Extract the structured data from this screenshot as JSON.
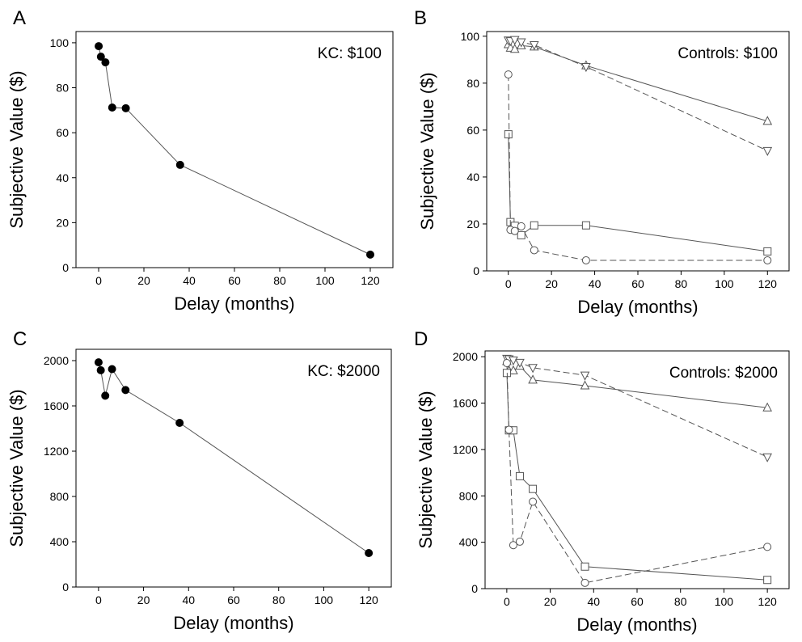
{
  "chart_data": [
    {
      "panel": "A",
      "type": "scatter",
      "annotation": "KC: $100",
      "xlabel": "Delay (months)",
      "ylabel": "Subjective Value ($)",
      "xlim": [
        -10,
        130
      ],
      "ylim": [
        0,
        105
      ],
      "xticks": [
        0,
        20,
        40,
        60,
        80,
        100,
        120
      ],
      "yticks": [
        0,
        20,
        40,
        60,
        80,
        100
      ],
      "grid": false,
      "series": [
        {
          "marker": "filled-circle",
          "line": "solid",
          "x": [
            0.03,
            1,
            3,
            6,
            12,
            36,
            120
          ],
          "y": [
            98.5,
            93.8,
            91.3,
            71.2,
            70.9,
            45.7,
            5.8
          ]
        }
      ]
    },
    {
      "panel": "B",
      "type": "scatter",
      "annotation": "Controls: $100",
      "xlabel": "Delay (months)",
      "ylabel": "Subjective Value ($)",
      "xlim": [
        -10,
        130
      ],
      "ylim": [
        0,
        102
      ],
      "xticks": [
        0,
        20,
        40,
        60,
        80,
        100,
        120
      ],
      "yticks": [
        0,
        20,
        40,
        60,
        80,
        100
      ],
      "grid": false,
      "series": [
        {
          "marker": "triangle-up",
          "line": "solid",
          "x": [
            0.03,
            1,
            3,
            6,
            12,
            36,
            120
          ],
          "y": [
            96.5,
            95,
            94.5,
            96,
            95.5,
            87.5,
            63.8
          ]
        },
        {
          "marker": "triangle-down",
          "line": "dashed",
          "x": [
            0.03,
            1,
            3,
            6,
            12,
            36,
            120
          ],
          "y": [
            98.3,
            98,
            98.5,
            97.5,
            96.3,
            87,
            51.2
          ]
        },
        {
          "marker": "square",
          "line": "solid",
          "x": [
            0.03,
            1,
            3,
            6,
            12,
            36,
            120
          ],
          "y": [
            58.2,
            20.8,
            19.2,
            15.2,
            19.4,
            19.4,
            8.3
          ]
        },
        {
          "marker": "circle",
          "line": "dashed",
          "x": [
            0.03,
            1,
            3,
            6,
            12,
            36,
            120
          ],
          "y": [
            83.7,
            17.5,
            17,
            19,
            8.8,
            4.5,
            4.5
          ]
        }
      ]
    },
    {
      "panel": "C",
      "type": "scatter",
      "annotation": "KC: $2000",
      "xlabel": "Delay (months)",
      "ylabel": "Subjective Value ($)",
      "xlim": [
        -10,
        130
      ],
      "ylim": [
        0,
        2100
      ],
      "xticks": [
        0,
        20,
        40,
        60,
        80,
        100,
        120
      ],
      "yticks": [
        0,
        400,
        800,
        1200,
        1600,
        2000
      ],
      "grid": false,
      "series": [
        {
          "marker": "filled-circle",
          "line": "solid",
          "x": [
            0.03,
            1,
            3,
            6,
            12,
            36,
            120
          ],
          "y": [
            1985,
            1915,
            1690,
            1925,
            1740,
            1450,
            300
          ]
        }
      ]
    },
    {
      "panel": "D",
      "type": "scatter",
      "annotation": "Controls: $2000",
      "xlabel": "Delay (months)",
      "ylabel": "Subjective Value ($)",
      "xlim": [
        -10,
        130
      ],
      "ylim": [
        0,
        2050
      ],
      "xticks": [
        0,
        20,
        40,
        60,
        80,
        100,
        120
      ],
      "yticks": [
        0,
        400,
        800,
        1200,
        1600,
        2000
      ],
      "grid": false,
      "series": [
        {
          "marker": "triangle-up",
          "line": "solid",
          "x": [
            0.03,
            1,
            3,
            6,
            12,
            36,
            120
          ],
          "y": [
            1960,
            1880,
            1880,
            1920,
            1800,
            1750,
            1560
          ]
        },
        {
          "marker": "triangle-down",
          "line": "dashed",
          "x": [
            0.03,
            1,
            3,
            6,
            12,
            36,
            120
          ],
          "y": [
            1985,
            1980,
            1970,
            1950,
            1905,
            1840,
            1135
          ]
        },
        {
          "marker": "square",
          "line": "solid",
          "x": [
            0.03,
            1,
            3,
            6,
            12,
            36,
            120
          ],
          "y": [
            1860,
            1365,
            1365,
            970,
            860,
            190,
            75
          ]
        },
        {
          "marker": "circle",
          "line": "dashed",
          "x": [
            0.03,
            1,
            3,
            6,
            12,
            36,
            120
          ],
          "y": [
            1945,
            1370,
            375,
            405,
            750,
            50,
            360
          ]
        }
      ]
    }
  ]
}
